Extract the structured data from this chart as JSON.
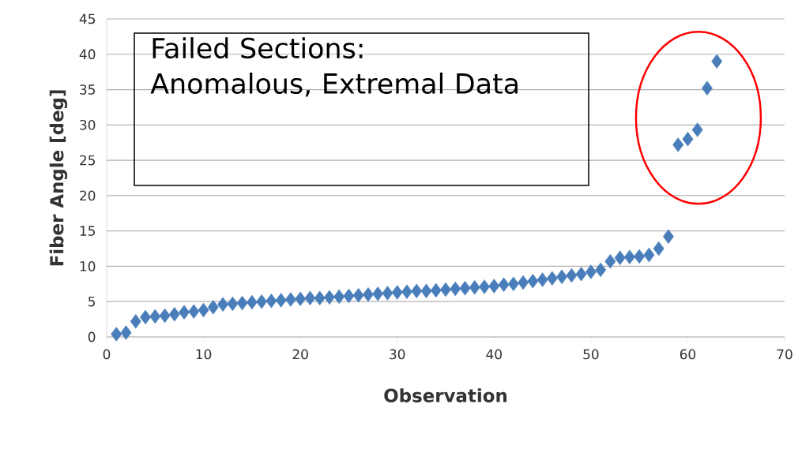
{
  "chart_data": {
    "type": "scatter",
    "xlabel": "Observation",
    "ylabel": "Fiber Angle [deg]",
    "x": [
      1,
      2,
      3,
      4,
      5,
      6,
      7,
      8,
      9,
      10,
      11,
      12,
      13,
      14,
      15,
      16,
      17,
      18,
      19,
      20,
      21,
      22,
      23,
      24,
      25,
      26,
      27,
      28,
      29,
      30,
      31,
      32,
      33,
      34,
      35,
      36,
      37,
      38,
      39,
      40,
      41,
      42,
      43,
      44,
      45,
      46,
      47,
      48,
      49,
      50,
      51,
      52,
      53,
      54,
      55,
      56,
      57,
      58,
      59,
      60,
      61,
      62,
      63
    ],
    "values": [
      0.4,
      0.6,
      2.2,
      2.8,
      2.9,
      3.0,
      3.2,
      3.5,
      3.6,
      3.8,
      4.2,
      4.6,
      4.7,
      4.8,
      4.9,
      5.0,
      5.1,
      5.2,
      5.3,
      5.4,
      5.5,
      5.5,
      5.6,
      5.7,
      5.8,
      5.9,
      6.0,
      6.1,
      6.2,
      6.3,
      6.4,
      6.5,
      6.5,
      6.6,
      6.7,
      6.8,
      6.9,
      7.0,
      7.1,
      7.2,
      7.4,
      7.5,
      7.7,
      7.9,
      8.1,
      8.3,
      8.5,
      8.7,
      8.9,
      9.2,
      9.5,
      10.7,
      11.2,
      11.3,
      11.4,
      11.6,
      12.5,
      14.2,
      27.2,
      28.0,
      29.3,
      35.2,
      39.0
    ],
    "color": "#4a7ebb",
    "marker": "diamond",
    "grid": "y",
    "xlim": [
      0,
      70
    ],
    "xticks": [
      0,
      10,
      20,
      30,
      40,
      50,
      60,
      70
    ],
    "ylim": [
      0,
      45
    ],
    "yticks": [
      0,
      5,
      10,
      15,
      20,
      25,
      30,
      35,
      40,
      45
    ],
    "annotations": [
      "Failed Sections: Anomalous, Extremal Data"
    ]
  }
}
